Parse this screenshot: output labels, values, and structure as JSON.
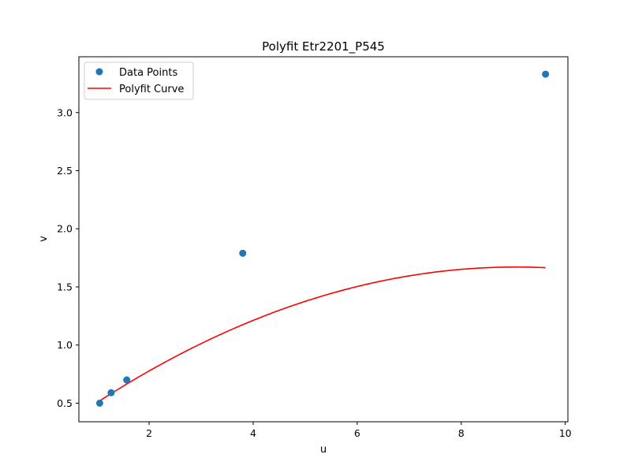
{
  "chart_data": {
    "type": "scatter",
    "title": "Polyfit Etr2201_P545",
    "xlabel": "u",
    "ylabel": "v",
    "xlim": [
      0.65,
      10.05
    ],
    "ylim": [
      0.34,
      3.48
    ],
    "xticks": [
      2,
      4,
      6,
      8,
      10
    ],
    "yticks": [
      0.5,
      1.0,
      1.5,
      2.0,
      2.5,
      3.0
    ],
    "xtick_labels": [
      "2",
      "4",
      "6",
      "8",
      "10"
    ],
    "ytick_labels": [
      "0.5",
      "1.0",
      "1.5",
      "2.0",
      "2.5",
      "3.0"
    ],
    "grid": false,
    "legend_position": "top-left",
    "series": [
      {
        "name": "Data Points",
        "kind": "scatter",
        "color": "#1f77b4",
        "x": [
          1.05,
          1.27,
          1.57,
          3.8,
          9.62
        ],
        "y": [
          0.5,
          0.59,
          0.7,
          1.79,
          3.33
        ]
      },
      {
        "name": "Polyfit Curve",
        "kind": "line",
        "color": "#ff0000",
        "fit_coefficients": [
          0.198,
          0.3254,
          -0.01797
        ]
      }
    ]
  }
}
